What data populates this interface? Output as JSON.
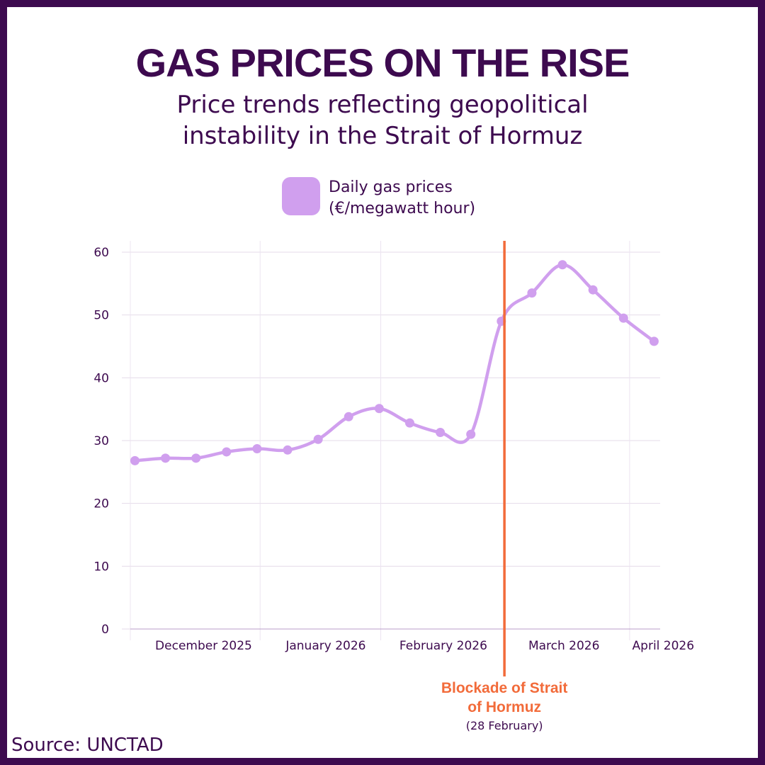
{
  "page": {
    "source": "Source: UNCTAD",
    "background_color": "#3d0a4f"
  },
  "chart_data": {
    "type": "line",
    "title": "GAS PRICES ON THE RISE",
    "subtitle_lines": [
      "Price trends reflecting geopolitical",
      "instability in the Strait of Hormuz"
    ],
    "legend": {
      "label_lines": [
        "Daily gas prices",
        "(€/megawatt hour)"
      ],
      "color": "#d09fee"
    },
    "xlabel": "",
    "ylabel": "",
    "ylim": [
      0,
      60
    ],
    "yticks": [
      0,
      10,
      20,
      30,
      40,
      50,
      60
    ],
    "xlim_index": [
      -0.15,
      17.2
    ],
    "month_labels": [
      {
        "label": "December 2025",
        "at_index": 2.25
      },
      {
        "label": "January 2026",
        "at_index": 6.25
      },
      {
        "label": "February 2026",
        "at_index": 10.1
      },
      {
        "label": "March 2026",
        "at_index": 14.05
      },
      {
        "label": "April 2026",
        "at_index": 17.3
      }
    ],
    "vertical_gridlines_at_index": [
      -0.15,
      4.1,
      8.05,
      16.2
    ],
    "series": [
      {
        "name": "Daily gas prices (€/megawatt hour)",
        "color": "#d09fee",
        "values": [
          26.8,
          27.2,
          27.2,
          28.2,
          28.7,
          28.5,
          30.2,
          33.8,
          35.1,
          32.8,
          31.3,
          31.0,
          49.0,
          53.5,
          58.0,
          54.0,
          49.5,
          45.8
        ]
      }
    ],
    "annotation": {
      "at_index": 12.1,
      "color": "#f26b3a",
      "label_lines": [
        "Blockade of Strait",
        "of Hormuz"
      ],
      "sub_label": "(28 February)"
    }
  }
}
